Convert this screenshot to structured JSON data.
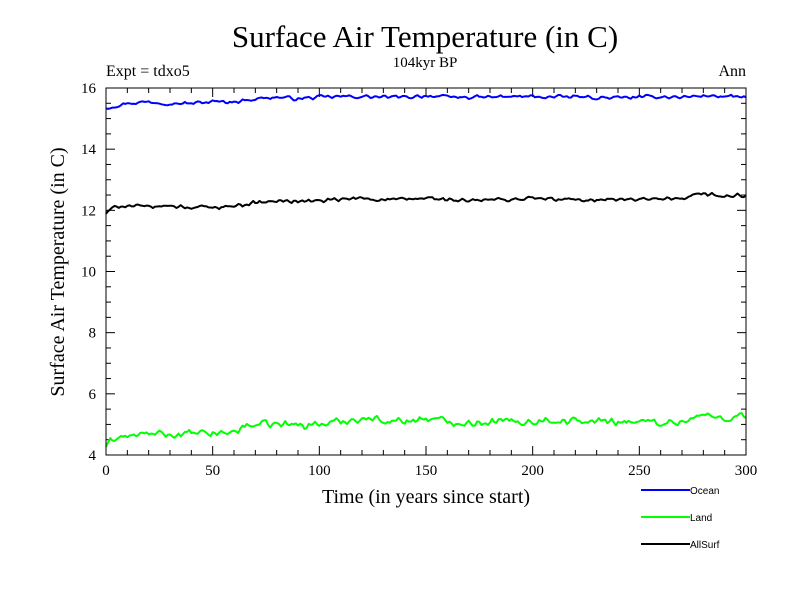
{
  "chart_data": {
    "type": "line",
    "title": "Surface Air Temperature (in C)",
    "subtitle": "104kyr BP",
    "left_label": "Expt = tdxo5",
    "right_label": "Ann",
    "xlabel": "Time (in years since start)",
    "ylabel": "Surface Air Temperature (in C)",
    "xlim": [
      0,
      300
    ],
    "ylim": [
      4,
      16
    ],
    "xticks": [
      0,
      50,
      100,
      150,
      200,
      250,
      300
    ],
    "yticks": [
      4,
      6,
      8,
      10,
      12,
      14,
      16
    ],
    "legend_position": "bottom-right",
    "series": [
      {
        "name": "Ocean",
        "color": "#0000ff",
        "x_start": 0,
        "x_end": 300,
        "anchors": [
          [
            0,
            15.35
          ],
          [
            10,
            15.5
          ],
          [
            20,
            15.55
          ],
          [
            30,
            15.5
          ],
          [
            40,
            15.5
          ],
          [
            50,
            15.55
          ],
          [
            60,
            15.55
          ],
          [
            70,
            15.65
          ],
          [
            80,
            15.7
          ],
          [
            90,
            15.65
          ],
          [
            100,
            15.7
          ],
          [
            110,
            15.72
          ],
          [
            120,
            15.72
          ],
          [
            130,
            15.7
          ],
          [
            140,
            15.7
          ],
          [
            150,
            15.75
          ],
          [
            160,
            15.7
          ],
          [
            170,
            15.7
          ],
          [
            180,
            15.7
          ],
          [
            190,
            15.72
          ],
          [
            200,
            15.72
          ],
          [
            210,
            15.7
          ],
          [
            220,
            15.72
          ],
          [
            230,
            15.68
          ],
          [
            240,
            15.68
          ],
          [
            250,
            15.7
          ],
          [
            260,
            15.72
          ],
          [
            270,
            15.7
          ],
          [
            280,
            15.75
          ],
          [
            290,
            15.72
          ],
          [
            300,
            15.7
          ]
        ],
        "noise": 0.07
      },
      {
        "name": "Land",
        "color": "#00ff00",
        "x_start": 0,
        "x_end": 300,
        "anchors": [
          [
            0,
            4.3
          ],
          [
            5,
            4.6
          ],
          [
            10,
            4.6
          ],
          [
            20,
            4.7
          ],
          [
            30,
            4.65
          ],
          [
            40,
            4.7
          ],
          [
            50,
            4.7
          ],
          [
            60,
            4.75
          ],
          [
            65,
            4.95
          ],
          [
            70,
            5.0
          ],
          [
            80,
            5.0
          ],
          [
            90,
            5.0
          ],
          [
            100,
            5.0
          ],
          [
            110,
            5.1
          ],
          [
            120,
            5.2
          ],
          [
            130,
            5.15
          ],
          [
            140,
            5.1
          ],
          [
            150,
            5.2
          ],
          [
            160,
            5.1
          ],
          [
            170,
            5.05
          ],
          [
            180,
            5.1
          ],
          [
            190,
            5.1
          ],
          [
            200,
            5.1
          ],
          [
            210,
            5.15
          ],
          [
            220,
            5.1
          ],
          [
            230,
            5.1
          ],
          [
            240,
            5.1
          ],
          [
            250,
            5.1
          ],
          [
            260,
            5.05
          ],
          [
            270,
            5.1
          ],
          [
            280,
            5.3
          ],
          [
            290,
            5.2
          ],
          [
            300,
            5.3
          ]
        ],
        "noise": 0.15
      },
      {
        "name": "AllSurf",
        "color": "#000000",
        "x_start": 0,
        "x_end": 300,
        "anchors": [
          [
            0,
            11.9
          ],
          [
            5,
            12.15
          ],
          [
            10,
            12.15
          ],
          [
            20,
            12.1
          ],
          [
            30,
            12.15
          ],
          [
            40,
            12.1
          ],
          [
            50,
            12.1
          ],
          [
            60,
            12.15
          ],
          [
            70,
            12.25
          ],
          [
            80,
            12.3
          ],
          [
            90,
            12.3
          ],
          [
            100,
            12.3
          ],
          [
            110,
            12.35
          ],
          [
            120,
            12.4
          ],
          [
            130,
            12.35
          ],
          [
            140,
            12.35
          ],
          [
            150,
            12.4
          ],
          [
            160,
            12.35
          ],
          [
            170,
            12.3
          ],
          [
            180,
            12.35
          ],
          [
            190,
            12.35
          ],
          [
            200,
            12.4
          ],
          [
            210,
            12.35
          ],
          [
            220,
            12.35
          ],
          [
            230,
            12.35
          ],
          [
            240,
            12.35
          ],
          [
            250,
            12.35
          ],
          [
            260,
            12.35
          ],
          [
            270,
            12.35
          ],
          [
            280,
            12.55
          ],
          [
            290,
            12.45
          ],
          [
            300,
            12.5
          ]
        ],
        "noise": 0.08
      }
    ]
  }
}
